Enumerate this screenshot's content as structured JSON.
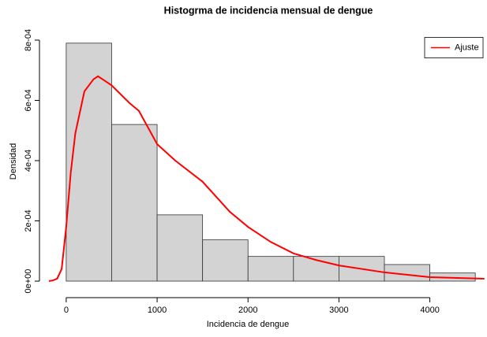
{
  "chart_data": {
    "type": "histogram",
    "title": "Histogrma de incidencia mensual de dengue",
    "x_label": "Incidencia de dengue",
    "y_label": "Densidad",
    "bins": [
      0,
      500,
      1000,
      1500,
      2000,
      2500,
      3000,
      3500,
      4000,
      4500
    ],
    "values": [
      0.00079,
      0.00052,
      0.00022,
      0.000137,
      8.2e-05,
      8.2e-05,
      8.2e-05,
      5.5e-05,
      2.7e-05
    ],
    "color": "#d3d3d3",
    "xlim": [
      -190,
      4620
    ],
    "ylim": [
      -3e-05,
      0.00083
    ],
    "xticks": [
      0,
      1000,
      2000,
      3000,
      4000
    ],
    "yticks": [
      {
        "value": 0,
        "label": "0e+00"
      },
      {
        "value": 0.0002,
        "label": "2e-04"
      },
      {
        "value": 0.0004,
        "label": "4e-04"
      },
      {
        "value": 0.0006,
        "label": "6e-04"
      },
      {
        "value": 0.0008,
        "label": "8e-04"
      }
    ],
    "legend": "topright",
    "series": [
      {
        "name": "Ajuste",
        "color": "#ff0000",
        "x": [
          -190,
          -150,
          -100,
          -50,
          0,
          50,
          100,
          200,
          300,
          350,
          400,
          500,
          700,
          800,
          1000,
          1200,
          1500,
          1800,
          2000,
          2250,
          2500,
          2750,
          3000,
          3500,
          4000,
          4600
        ],
        "values": [
          5e-07,
          2e-06,
          8e-06,
          4e-05,
          0.00018,
          0.00036,
          0.00049,
          0.00063,
          0.00067,
          0.00068,
          0.00067,
          0.00065,
          0.00059,
          0.000565,
          0.000455,
          0.0004,
          0.00033,
          0.00023,
          0.00018,
          0.00013,
          9.2e-05,
          7e-05,
          5.2e-05,
          2.9e-05,
          1.3e-05,
          8e-06
        ]
      }
    ]
  }
}
